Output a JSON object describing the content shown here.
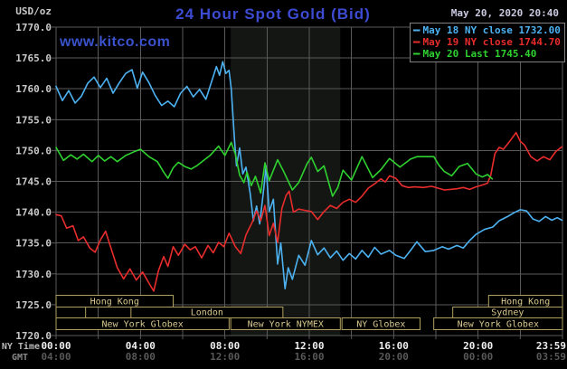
{
  "page": {
    "background": "#000000"
  },
  "header": {
    "units_label": "USD/oz",
    "title": "24 Hour Spot Gold (Bid)",
    "title_color": "#3c4bd2",
    "watermark": "www.kitco.com",
    "watermark_color": "#3a52cc",
    "timestamp": "May 20, 2020 20:40"
  },
  "legend": {
    "items": [
      {
        "label": "May 18 NY close 1732.00",
        "color": "#4db2f2"
      },
      {
        "label": "May 19 NY close 1744.70",
        "color": "#e82c2c"
      },
      {
        "label": "May 20 Last 1745.40",
        "color": "#2fd12f"
      }
    ]
  },
  "x_axis_rows": {
    "ny_label": "NY Time",
    "gmt_label": "GMT"
  },
  "chart_data": {
    "type": "line",
    "title": "24 Hour Spot Gold (Bid)",
    "y_units": "USD/oz",
    "grid": true,
    "y_axis": {
      "min": 1720,
      "max": 1770,
      "tick_step": 5,
      "tick_labels": [
        "1770.0",
        "1765.0",
        "1760.0",
        "1755.0",
        "1750.0",
        "1745.0",
        "1740.0",
        "1735.0",
        "1730.0",
        "1725.0",
        "1720.0"
      ]
    },
    "x_axis": {
      "range_hours": [
        0,
        24
      ],
      "gridline_every_hours": 2,
      "ticks": [
        {
          "hour": 0,
          "ny": "00:00",
          "gmt": "04:00"
        },
        {
          "hour": 4,
          "ny": "04:00",
          "gmt": "08:00"
        },
        {
          "hour": 8,
          "ny": "08:00",
          "gmt": "12:00"
        },
        {
          "hour": 12,
          "ny": "12:00",
          "gmt": "16:00"
        },
        {
          "hour": 16,
          "ny": "16:00",
          "gmt": "20:00"
        },
        {
          "hour": 20,
          "ny": "20:00",
          "gmt": "00:00"
        },
        {
          "hour": 23.983,
          "ny": "23:59",
          "gmt": "03:59"
        }
      ]
    },
    "band": {
      "from_hour": 8.28,
      "to_hour": 13.47,
      "color": "#131612"
    },
    "sessions": [
      {
        "row": 0,
        "label": "Hong Kong",
        "from_hour": 0,
        "to_hour": 5.55
      },
      {
        "row": 0,
        "label": "Hong Kong",
        "from_hour": 20.5,
        "to_hour": 24
      },
      {
        "row": 1,
        "label": "",
        "from_hour": 0,
        "to_hour": 1.4
      },
      {
        "row": 1,
        "label": "London",
        "from_hour": 3.55,
        "to_hour": 10.75
      },
      {
        "row": 1,
        "label": "Sydney",
        "from_hour": 18.8,
        "to_hour": 24
      },
      {
        "row": 2,
        "label": "New York Globex",
        "from_hour": 0,
        "to_hour": 8.2
      },
      {
        "row": 2,
        "label": "New York NYMEX",
        "from_hour": 8.28,
        "to_hour": 13.47
      },
      {
        "row": 2,
        "label": "NY Globex",
        "from_hour": 13.55,
        "to_hour": 17.25
      },
      {
        "row": 2,
        "label": "New York Globex",
        "from_hour": 17.9,
        "to_hour": 24
      }
    ],
    "series": [
      {
        "name": "May 18 NY close",
        "close_value": 1732.0,
        "color": "#4db2f2",
        "points": [
          [
            0,
            1760.4
          ],
          [
            0.3,
            1758.1
          ],
          [
            0.6,
            1759.7
          ],
          [
            0.9,
            1757.7
          ],
          [
            1.2,
            1758.8
          ],
          [
            1.5,
            1760.9
          ],
          [
            1.8,
            1761.9
          ],
          [
            2.1,
            1760.2
          ],
          [
            2.4,
            1761.7
          ],
          [
            2.7,
            1759.3
          ],
          [
            3.0,
            1761.0
          ],
          [
            3.3,
            1762.5
          ],
          [
            3.6,
            1763.1
          ],
          [
            3.85,
            1760.1
          ],
          [
            4.1,
            1762.7
          ],
          [
            4.4,
            1761.0
          ],
          [
            4.7,
            1758.9
          ],
          [
            5.0,
            1757.3
          ],
          [
            5.3,
            1758.0
          ],
          [
            5.6,
            1757.1
          ],
          [
            5.9,
            1759.3
          ],
          [
            6.2,
            1760.4
          ],
          [
            6.5,
            1758.7
          ],
          [
            6.8,
            1759.9
          ],
          [
            7.1,
            1758.3
          ],
          [
            7.4,
            1761.5
          ],
          [
            7.6,
            1763.6
          ],
          [
            7.75,
            1762.2
          ],
          [
            7.9,
            1764.4
          ],
          [
            8.05,
            1762.5
          ],
          [
            8.2,
            1763.0
          ],
          [
            8.3,
            1760.0
          ],
          [
            8.45,
            1752.0
          ],
          [
            8.55,
            1747.5
          ],
          [
            8.7,
            1750.4
          ],
          [
            8.85,
            1746.2
          ],
          [
            9.0,
            1747.3
          ],
          [
            9.2,
            1743.0
          ],
          [
            9.35,
            1738.6
          ],
          [
            9.5,
            1741.0
          ],
          [
            9.65,
            1738.1
          ],
          [
            9.85,
            1744.0
          ],
          [
            9.95,
            1747.5
          ],
          [
            10.1,
            1740.1
          ],
          [
            10.3,
            1742.1
          ],
          [
            10.5,
            1731.6
          ],
          [
            10.65,
            1735.0
          ],
          [
            10.85,
            1727.6
          ],
          [
            11.0,
            1731.0
          ],
          [
            11.2,
            1729.1
          ],
          [
            11.5,
            1733.0
          ],
          [
            11.8,
            1731.4
          ],
          [
            12.1,
            1735.4
          ],
          [
            12.4,
            1733.1
          ],
          [
            12.7,
            1734.2
          ],
          [
            13.0,
            1732.6
          ],
          [
            13.3,
            1733.7
          ],
          [
            13.6,
            1732.2
          ],
          [
            13.9,
            1733.3
          ],
          [
            14.2,
            1732.4
          ],
          [
            14.5,
            1733.8
          ],
          [
            14.8,
            1732.7
          ],
          [
            15.1,
            1734.3
          ],
          [
            15.4,
            1733.2
          ],
          [
            15.8,
            1733.8
          ],
          [
            16.1,
            1733.0
          ],
          [
            16.5,
            1732.5
          ],
          [
            16.8,
            1733.8
          ],
          [
            17.1,
            1735.2
          ],
          [
            17.5,
            1733.6
          ],
          [
            17.9,
            1733.8
          ],
          [
            18.3,
            1734.4
          ],
          [
            18.6,
            1734.0
          ],
          [
            19.0,
            1734.6
          ],
          [
            19.3,
            1734.2
          ],
          [
            19.6,
            1735.4
          ],
          [
            19.9,
            1736.4
          ],
          [
            20.3,
            1737.2
          ],
          [
            20.7,
            1737.6
          ],
          [
            21.0,
            1738.6
          ],
          [
            21.4,
            1739.3
          ],
          [
            21.7,
            1739.9
          ],
          [
            22.0,
            1740.4
          ],
          [
            22.3,
            1740.2
          ],
          [
            22.6,
            1738.9
          ],
          [
            22.9,
            1738.5
          ],
          [
            23.2,
            1739.3
          ],
          [
            23.5,
            1738.7
          ],
          [
            23.75,
            1739.1
          ],
          [
            23.98,
            1738.7
          ]
        ]
      },
      {
        "name": "May 19 NY close",
        "close_value": 1744.7,
        "color": "#e82c2c",
        "points": [
          [
            0,
            1739.6
          ],
          [
            0.25,
            1739.4
          ],
          [
            0.5,
            1737.4
          ],
          [
            0.8,
            1737.8
          ],
          [
            1.05,
            1735.4
          ],
          [
            1.3,
            1736.0
          ],
          [
            1.6,
            1734.2
          ],
          [
            1.85,
            1733.5
          ],
          [
            2.1,
            1735.5
          ],
          [
            2.35,
            1736.9
          ],
          [
            2.6,
            1734.2
          ],
          [
            2.9,
            1731.0
          ],
          [
            3.2,
            1729.2
          ],
          [
            3.5,
            1730.8
          ],
          [
            3.8,
            1729.0
          ],
          [
            4.1,
            1730.3
          ],
          [
            4.4,
            1728.5
          ],
          [
            4.63,
            1727.2
          ],
          [
            4.85,
            1730.5
          ],
          [
            5.1,
            1732.8
          ],
          [
            5.3,
            1731.2
          ],
          [
            5.55,
            1734.4
          ],
          [
            5.8,
            1733.0
          ],
          [
            6.1,
            1734.8
          ],
          [
            6.35,
            1733.9
          ],
          [
            6.6,
            1734.4
          ],
          [
            6.9,
            1732.6
          ],
          [
            7.2,
            1734.6
          ],
          [
            7.45,
            1733.4
          ],
          [
            7.7,
            1735.1
          ],
          [
            7.95,
            1734.4
          ],
          [
            8.2,
            1736.6
          ],
          [
            8.5,
            1734.4
          ],
          [
            8.75,
            1733.3
          ],
          [
            9.0,
            1736.3
          ],
          [
            9.3,
            1738.4
          ],
          [
            9.5,
            1740.2
          ],
          [
            9.7,
            1738.6
          ],
          [
            9.9,
            1741.1
          ],
          [
            10.1,
            1736.2
          ],
          [
            10.3,
            1738.2
          ],
          [
            10.5,
            1735.1
          ],
          [
            10.7,
            1740.6
          ],
          [
            10.9,
            1742.7
          ],
          [
            11.05,
            1743.4
          ],
          [
            11.25,
            1740.0
          ],
          [
            11.5,
            1740.5
          ],
          [
            11.8,
            1740.3
          ],
          [
            12.1,
            1740.1
          ],
          [
            12.4,
            1738.8
          ],
          [
            12.7,
            1740.1
          ],
          [
            13.0,
            1741.1
          ],
          [
            13.3,
            1740.6
          ],
          [
            13.6,
            1741.6
          ],
          [
            13.9,
            1742.1
          ],
          [
            14.2,
            1741.6
          ],
          [
            14.5,
            1742.6
          ],
          [
            14.8,
            1743.9
          ],
          [
            15.1,
            1744.6
          ],
          [
            15.4,
            1745.4
          ],
          [
            15.6,
            1744.9
          ],
          [
            15.8,
            1745.9
          ],
          [
            16.1,
            1745.5
          ],
          [
            16.4,
            1744.3
          ],
          [
            16.7,
            1744.0
          ],
          [
            17.0,
            1744.1
          ],
          [
            17.4,
            1744.0
          ],
          [
            17.8,
            1744.2
          ],
          [
            18.1,
            1743.9
          ],
          [
            18.4,
            1743.6
          ],
          [
            18.7,
            1743.7
          ],
          [
            19.0,
            1743.8
          ],
          [
            19.3,
            1744.0
          ],
          [
            19.6,
            1743.7
          ],
          [
            19.9,
            1744.1
          ],
          [
            20.2,
            1744.4
          ],
          [
            20.45,
            1744.7
          ],
          [
            20.6,
            1746.0
          ],
          [
            20.8,
            1749.5
          ],
          [
            21.0,
            1750.5
          ],
          [
            21.2,
            1750.2
          ],
          [
            21.5,
            1751.5
          ],
          [
            21.8,
            1752.9
          ],
          [
            22.0,
            1751.5
          ],
          [
            22.2,
            1750.9
          ],
          [
            22.5,
            1749.0
          ],
          [
            22.8,
            1748.3
          ],
          [
            23.1,
            1749.0
          ],
          [
            23.4,
            1748.5
          ],
          [
            23.7,
            1749.9
          ],
          [
            23.98,
            1750.6
          ]
        ]
      },
      {
        "name": "May 20 Last",
        "last_value": 1745.4,
        "color": "#2fd12f",
        "points": [
          [
            0,
            1750.5
          ],
          [
            0.35,
            1748.4
          ],
          [
            0.7,
            1749.3
          ],
          [
            1.0,
            1748.6
          ],
          [
            1.3,
            1749.4
          ],
          [
            1.7,
            1748.2
          ],
          [
            2.0,
            1749.2
          ],
          [
            2.3,
            1748.3
          ],
          [
            2.6,
            1749.0
          ],
          [
            2.9,
            1748.2
          ],
          [
            3.3,
            1749.2
          ],
          [
            3.7,
            1749.8
          ],
          [
            4.0,
            1750.2
          ],
          [
            4.4,
            1749.0
          ],
          [
            4.8,
            1748.2
          ],
          [
            5.1,
            1746.5
          ],
          [
            5.3,
            1745.5
          ],
          [
            5.55,
            1747.2
          ],
          [
            5.8,
            1748.1
          ],
          [
            6.1,
            1747.4
          ],
          [
            6.4,
            1747.0
          ],
          [
            6.7,
            1747.6
          ],
          [
            7.0,
            1748.4
          ],
          [
            7.3,
            1749.2
          ],
          [
            7.7,
            1750.7
          ],
          [
            8.0,
            1749.2
          ],
          [
            8.3,
            1751.3
          ],
          [
            8.5,
            1749.4
          ],
          [
            8.7,
            1746.0
          ],
          [
            8.9,
            1744.8
          ],
          [
            9.05,
            1746.5
          ],
          [
            9.25,
            1744.3
          ],
          [
            9.45,
            1745.8
          ],
          [
            9.7,
            1743.1
          ],
          [
            9.9,
            1748.0
          ],
          [
            10.1,
            1745.1
          ],
          [
            10.5,
            1748.5
          ],
          [
            10.8,
            1746.5
          ],
          [
            11.2,
            1743.6
          ],
          [
            11.5,
            1744.8
          ],
          [
            11.9,
            1747.9
          ],
          [
            12.1,
            1748.9
          ],
          [
            12.4,
            1746.6
          ],
          [
            12.7,
            1747.5
          ],
          [
            13.1,
            1742.6
          ],
          [
            13.35,
            1744.0
          ],
          [
            13.6,
            1746.8
          ],
          [
            14.0,
            1745.2
          ],
          [
            14.5,
            1749.0
          ],
          [
            15.0,
            1745.6
          ],
          [
            15.4,
            1746.9
          ],
          [
            15.8,
            1748.7
          ],
          [
            16.3,
            1747.3
          ],
          [
            16.8,
            1748.6
          ],
          [
            17.1,
            1749.0
          ],
          [
            17.9,
            1749.0
          ],
          [
            18.15,
            1747.6
          ],
          [
            18.4,
            1746.6
          ],
          [
            18.75,
            1745.9
          ],
          [
            19.1,
            1747.4
          ],
          [
            19.5,
            1747.9
          ],
          [
            19.9,
            1746.2
          ],
          [
            20.2,
            1745.7
          ],
          [
            20.45,
            1746.1
          ],
          [
            20.67,
            1745.4
          ]
        ]
      }
    ]
  }
}
